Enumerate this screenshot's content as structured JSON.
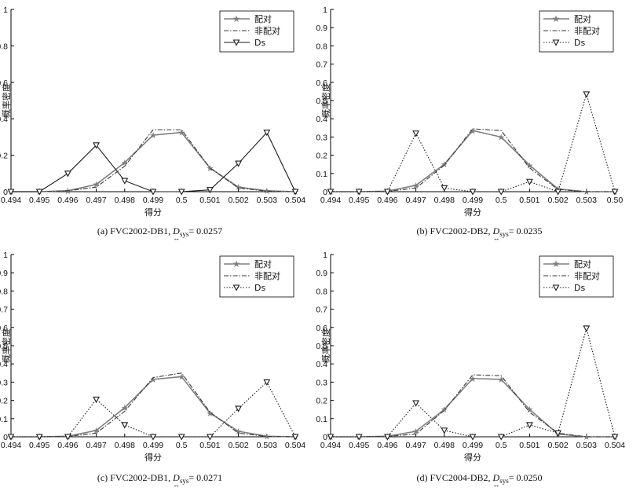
{
  "ylabel": "概率密度",
  "xlabel": "得分",
  "legend": [
    "配对",
    "非配对",
    "Ds"
  ],
  "colors": {
    "match": "#7f7f7f",
    "nonmatch": "#3a3a3a",
    "ds": "#1a1a1a",
    "axis": "#000000"
  },
  "panels": [
    {
      "caption": {
        "prefix": "(a) FVC2002-DB1, ",
        "D": "D",
        "sub": "sys",
        "suffix": "= 0.0257",
        "arrow": "↔"
      },
      "ds_style": "solid",
      "chart_data": {
        "type": "line",
        "x": [
          0.494,
          0.495,
          0.496,
          0.497,
          0.498,
          0.499,
          0.5,
          0.501,
          0.502,
          0.503,
          0.504
        ],
        "xticklabels": [
          "0.494",
          "0.495",
          "0.496",
          "0.497",
          "0.498",
          "0.499",
          "0.5",
          "0.501",
          "0.502",
          "0.503",
          "0.504"
        ],
        "ylim": [
          0,
          1
        ],
        "yticks": [
          0,
          0.2,
          0.4,
          0.6,
          0.8,
          1
        ],
        "yticklabels": [
          "0",
          "0.2",
          "0.4",
          "0.6",
          "0.8",
          "1"
        ],
        "legend_position": "top-right",
        "series": [
          {
            "name": "配对",
            "values": [
              0,
              0,
              0.005,
              0.04,
              0.16,
              0.31,
              0.325,
              0.13,
              0.025,
              0.005,
              0
            ]
          },
          {
            "name": "非配对",
            "values": [
              0,
              0,
              0.005,
              0.025,
              0.14,
              0.34,
              0.34,
              0.13,
              0.02,
              0.003,
              0
            ]
          },
          {
            "name": "Ds",
            "values": [
              0,
              0,
              0.1,
              0.255,
              0.06,
              0,
              0,
              0.01,
              0.155,
              0.325,
              0
            ]
          }
        ]
      }
    },
    {
      "caption": {
        "prefix": "(b) FVC2002-DB2, ",
        "D": "D",
        "sub": "sys",
        "suffix": "= 0.0235",
        "arrow": "↔"
      },
      "ds_style": "dotted",
      "chart_data": {
        "type": "line",
        "x": [
          0.494,
          0.495,
          0.496,
          0.497,
          0.498,
          0.499,
          0.5,
          0.501,
          0.502,
          0.503,
          0.504
        ],
        "xticklabels": [
          "0.494",
          "0.495",
          "0.496",
          "0.497",
          "0.498",
          "0.499",
          "0.5",
          "0.501",
          "0.502",
          "0.503",
          "0.50"
        ],
        "ylim": [
          0,
          1
        ],
        "yticks": [
          0,
          0.1,
          0.2,
          0.3,
          0.4,
          0.5,
          0.6,
          0.7,
          0.8,
          0.9,
          1
        ],
        "yticklabels": [
          "0",
          "0.1",
          "0.2",
          "0.3",
          "0.4",
          "0.5",
          "0.6",
          "0.7",
          "0.8",
          "0.9",
          "1"
        ],
        "legend_position": "top-right",
        "series": [
          {
            "name": "配对",
            "values": [
              0,
              0,
              0.003,
              0.035,
              0.15,
              0.335,
              0.3,
              0.145,
              0.015,
              0,
              0
            ]
          },
          {
            "name": "非配对",
            "values": [
              0,
              0,
              0.002,
              0.02,
              0.145,
              0.345,
              0.335,
              0.13,
              0.012,
              0,
              0
            ]
          },
          {
            "name": "Ds",
            "values": [
              0,
              0,
              0,
              0.32,
              0.02,
              0,
              0,
              0.055,
              0,
              0.535,
              0
            ]
          }
        ]
      }
    },
    {
      "caption": {
        "prefix": "(c) FVC2002-DB1, ",
        "D": "D",
        "sub": "sys",
        "suffix": "= 0.0271",
        "arrow": "↔"
      },
      "ds_style": "dotted",
      "chart_data": {
        "type": "line",
        "x": [
          0.494,
          0.495,
          0.496,
          0.497,
          0.498,
          0.499,
          0.5,
          0.501,
          0.502,
          0.503,
          0.504
        ],
        "xticklabels": [
          "0.494",
          "0.495",
          "0.496",
          "0.497",
          "0.498",
          "0.499",
          "0.5",
          "0.501",
          "0.502",
          "0.503",
          "0.504"
        ],
        "ylim": [
          0,
          1
        ],
        "yticks": [
          0,
          0.1,
          0.2,
          0.3,
          0.4,
          0.5,
          0.6,
          0.7,
          0.8,
          0.9,
          1
        ],
        "yticklabels": [
          "0",
          "0.1",
          "0.2",
          "0.3",
          "0.4",
          "0.5",
          "0.6",
          "0.7",
          "0.8",
          "0.9",
          "1"
        ],
        "legend_position": "top-right",
        "series": [
          {
            "name": "配对",
            "values": [
              0,
              0,
              0.003,
              0.035,
              0.16,
              0.315,
              0.33,
              0.13,
              0.03,
              0.003,
              0
            ]
          },
          {
            "name": "非配对",
            "values": [
              0,
              0,
              0.002,
              0.02,
              0.14,
              0.325,
              0.35,
              0.135,
              0.02,
              0.002,
              0
            ]
          },
          {
            "name": "Ds",
            "values": [
              0,
              0,
              0,
              0.205,
              0.065,
              0,
              0,
              0,
              0.155,
              0.3,
              0
            ]
          }
        ]
      }
    },
    {
      "caption": {
        "prefix": "(d) FVC2004-DB2, ",
        "D": "D",
        "sub": "sys",
        "suffix": "= 0.0250",
        "arrow": "↔"
      },
      "ds_style": "dotted",
      "chart_data": {
        "type": "line",
        "x": [
          0.494,
          0.495,
          0.496,
          0.497,
          0.498,
          0.499,
          0.5,
          0.501,
          0.502,
          0.503,
          0.504
        ],
        "xticklabels": [
          "0.494",
          "0.495",
          "0.496",
          "0.497",
          "0.498",
          "0.499",
          "0.5",
          "0.501",
          "0.502",
          "0.503",
          "0.504"
        ],
        "ylim": [
          0,
          1
        ],
        "yticks": [
          0,
          0.1,
          0.2,
          0.3,
          0.4,
          0.5,
          0.6,
          0.7,
          0.8,
          0.9,
          1
        ],
        "yticklabels": [
          "0",
          "0.1",
          "0.2",
          "0.3",
          "0.4",
          "0.5",
          "0.6",
          "0.7",
          "0.8",
          "0.9",
          "1"
        ],
        "legend_position": "top-right",
        "series": [
          {
            "name": "配对",
            "values": [
              0,
              0,
              0.003,
              0.03,
              0.15,
              0.32,
              0.315,
              0.15,
              0.015,
              0,
              0
            ]
          },
          {
            "name": "非配对",
            "values": [
              0,
              0,
              0.002,
              0.015,
              0.145,
              0.34,
              0.335,
              0.135,
              0.02,
              0,
              0
            ]
          },
          {
            "name": "Ds",
            "values": [
              0,
              0,
              0,
              0.185,
              0.035,
              0,
              0,
              0.065,
              0.02,
              0.595,
              0
            ]
          }
        ]
      }
    }
  ]
}
